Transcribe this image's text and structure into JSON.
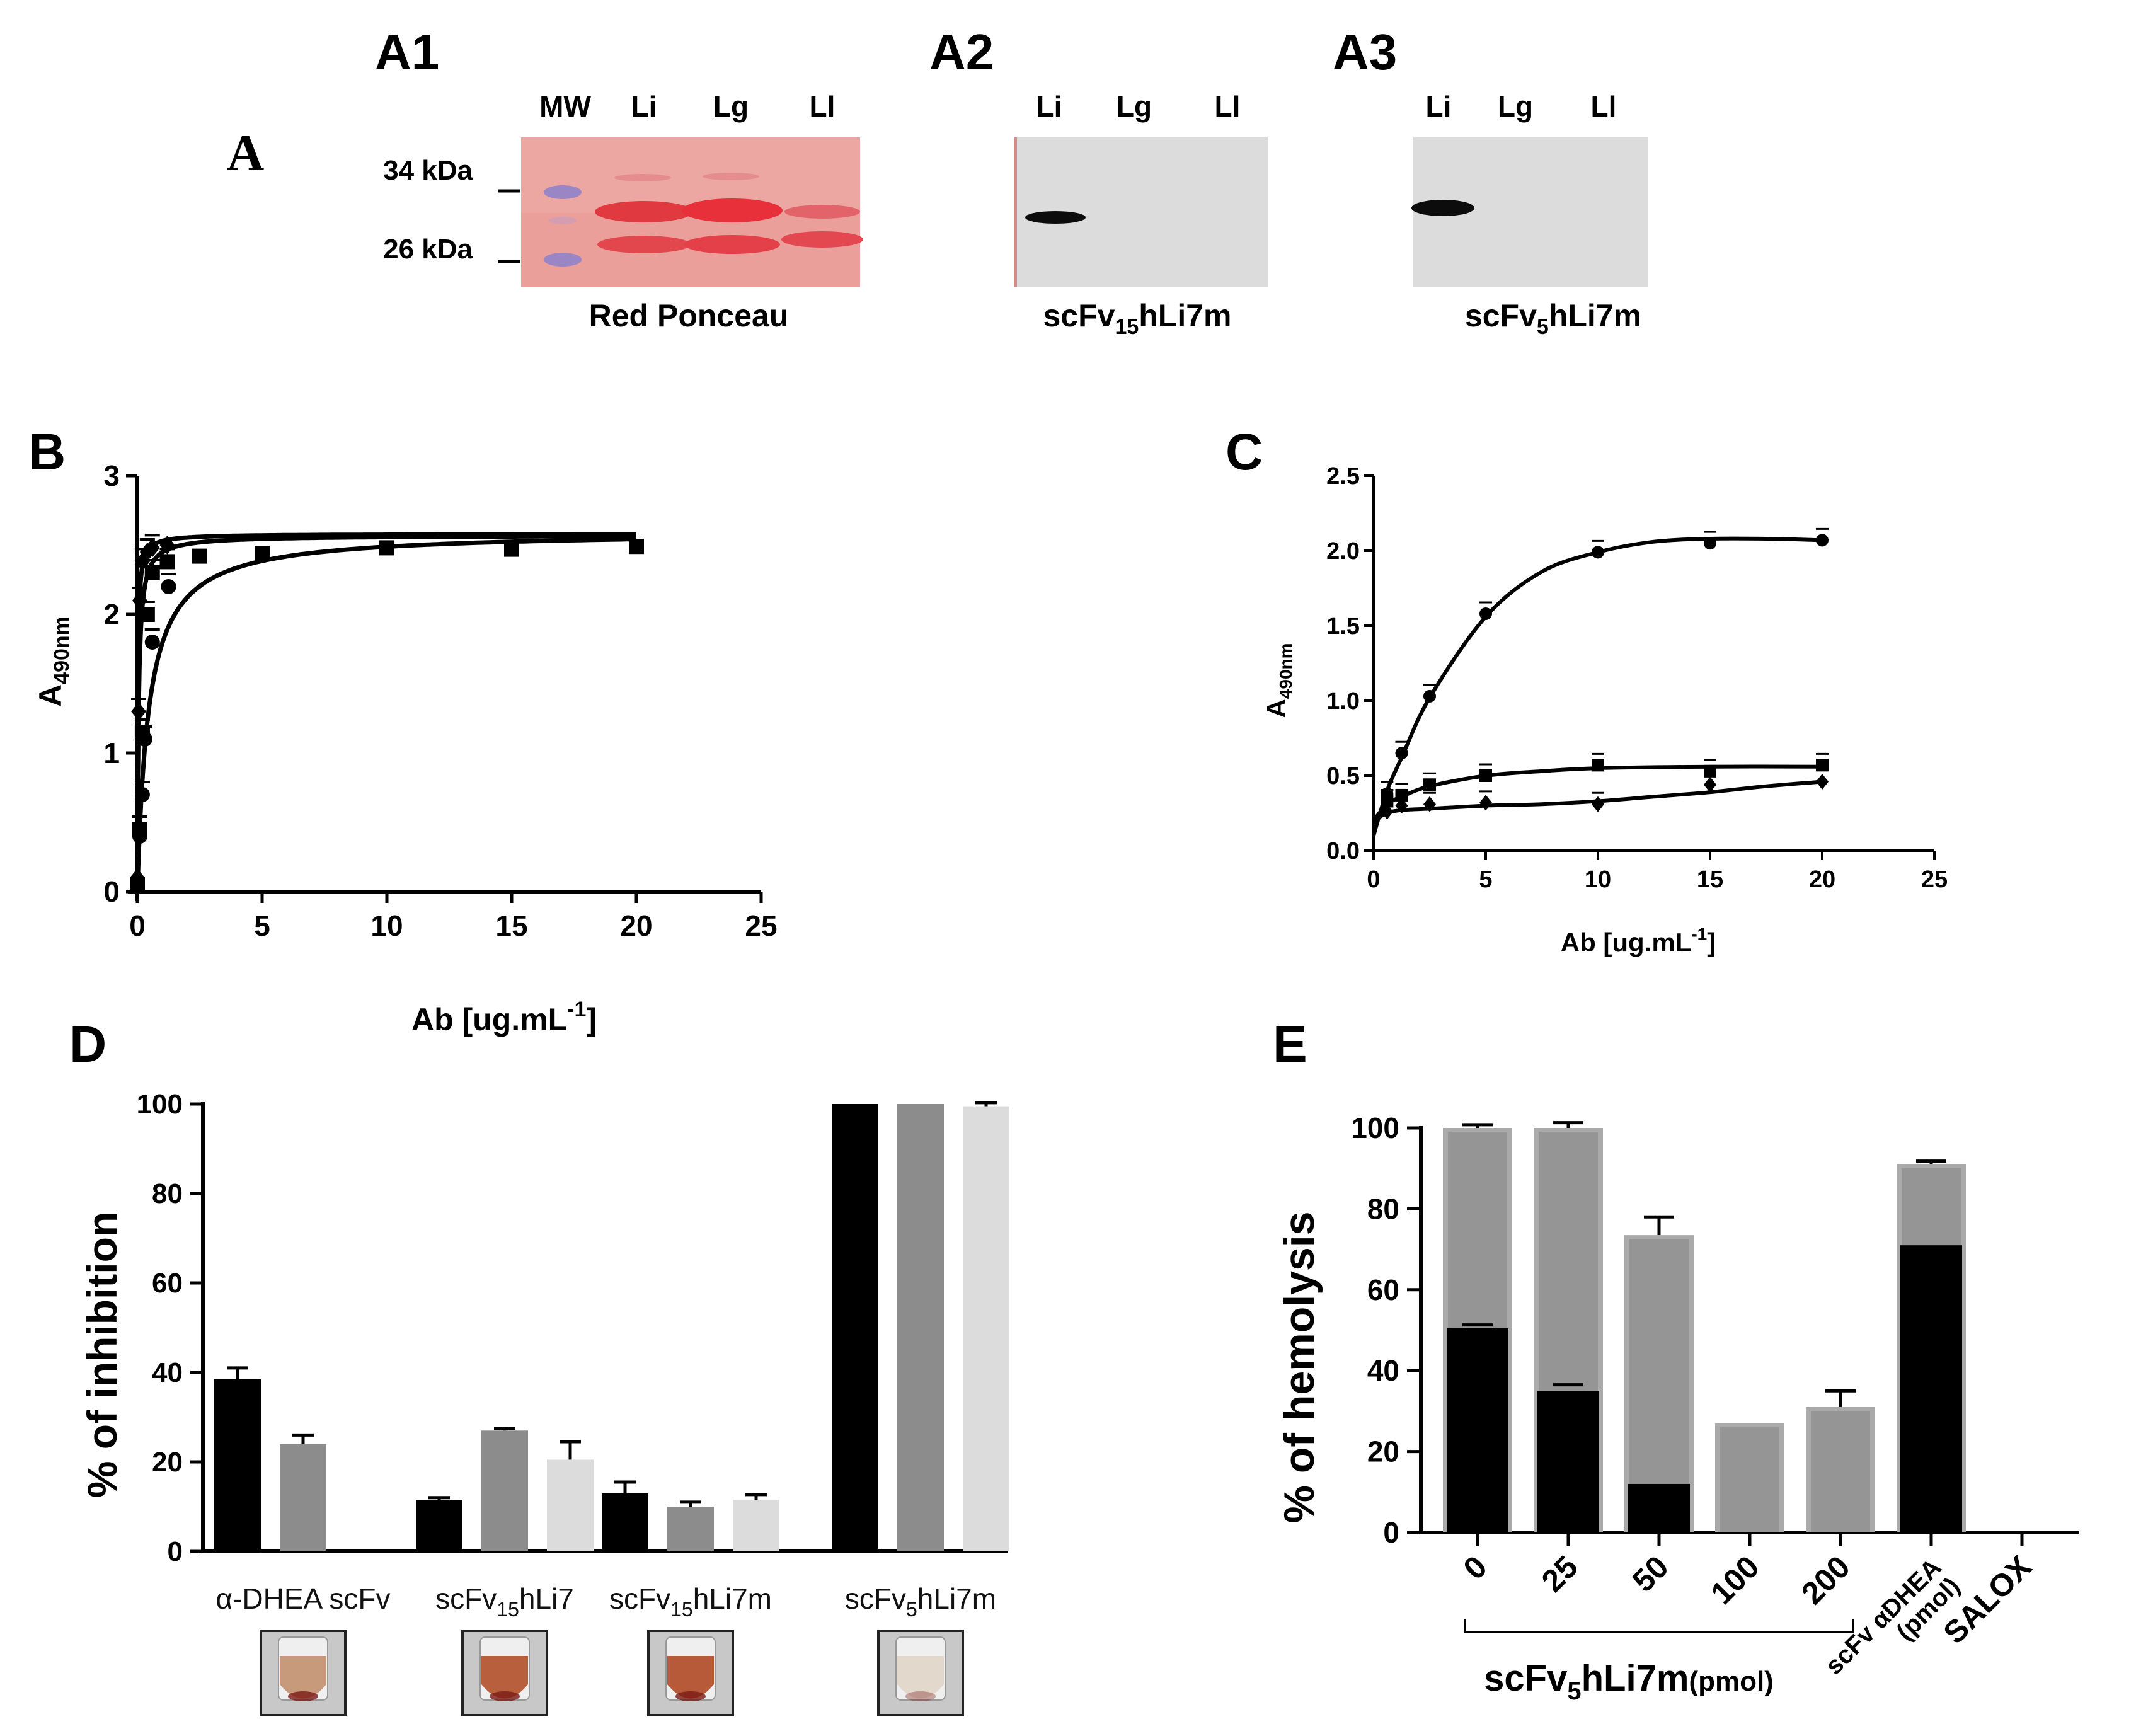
{
  "colors": {
    "black": "#000000",
    "dark_gray": "#8c8c8c",
    "light_gray": "#dcdcdc",
    "ponceau_bg": "#ea9f9a",
    "ponceau_band": "#e03a40",
    "mw_band": "#9a86c4",
    "blot_bg": "#dcdcdc",
    "blot_band": "#0c0c0c",
    "stack_light": "#aaaaaa",
    "stack_inner": "#959595"
  },
  "panel_a": {
    "label": "A",
    "sub": [
      {
        "label": "A1",
        "caption": "Red Ponceau",
        "lanes": [
          "MW",
          "Li",
          "Lg",
          "Ll"
        ],
        "markers": [
          "34 kDa",
          "26 kDa"
        ]
      },
      {
        "label": "A2",
        "caption": {
          "prefix": "scFv",
          "sub": "15",
          "suffix": "hLi7m"
        },
        "lanes": [
          "Li",
          "Lg",
          "Ll"
        ]
      },
      {
        "label": "A3",
        "caption": {
          "prefix": "scFv",
          "sub": "5",
          "suffix": "hLi7m"
        },
        "lanes": [
          "Li",
          "Lg",
          "Ll"
        ]
      }
    ]
  },
  "chart_data": [
    {
      "panel": "B",
      "type": "line",
      "xlabel": {
        "main": "Ab [ug.mL",
        "sup": "-1",
        "end": "]"
      },
      "ylabel": {
        "main": "A",
        "sub": "490nm"
      },
      "xlim": [
        0,
        25
      ],
      "ylim": [
        0,
        3
      ],
      "xticks": [
        0,
        5,
        10,
        15,
        20,
        25
      ],
      "yticks": [
        0,
        1,
        2,
        3
      ],
      "series": [
        {
          "name": "squares",
          "marker": "square",
          "x": [
            0,
            0.1,
            0.2,
            0.4,
            0.6,
            1.2,
            2.5,
            5,
            10,
            15,
            20
          ],
          "y": [
            0.05,
            0.45,
            1.15,
            2.0,
            2.3,
            2.38,
            2.42,
            2.44,
            2.48,
            2.47,
            2.49
          ],
          "curve": {
            "top": 2.57,
            "k": 0.05
          }
        },
        {
          "name": "diamonds",
          "marker": "diamond",
          "x": [
            0,
            0.05,
            0.1,
            0.2,
            0.4,
            0.6,
            1.2
          ],
          "y": [
            0.1,
            1.3,
            2.1,
            2.38,
            2.45,
            2.48,
            2.5
          ],
          "curve": {
            "top": 2.58,
            "k": 0.02
          }
        },
        {
          "name": "circles",
          "marker": "circle",
          "x": [
            0,
            0.1,
            0.2,
            0.3,
            0.6,
            1.25
          ],
          "y": [
            0.05,
            0.4,
            0.7,
            1.1,
            1.8,
            2.2
          ],
          "curve": {
            "top": 2.6,
            "k": 0.45
          }
        }
      ]
    },
    {
      "panel": "C",
      "type": "line",
      "xlabel": {
        "main": "Ab [ug.mL",
        "sup": "-1",
        "end": "]"
      },
      "ylabel": {
        "main": "A",
        "sub": "490nm"
      },
      "xlim": [
        0,
        25
      ],
      "ylim": [
        0,
        2.5
      ],
      "xticks": [
        0,
        5,
        10,
        15,
        20,
        25
      ],
      "yticks": [
        0.0,
        0.5,
        1.0,
        1.5,
        2.0,
        2.5
      ],
      "series": [
        {
          "name": "circles",
          "marker": "circle",
          "x": [
            0.6,
            1.25,
            2.5,
            5,
            10,
            15,
            20
          ],
          "y": [
            0.38,
            0.65,
            1.03,
            1.58,
            1.99,
            2.05,
            2.07
          ],
          "curve_x": [
            0,
            0.6,
            1.25,
            2.5,
            5,
            7.5,
            10,
            12.5,
            15,
            17.5,
            20
          ],
          "curve_y": [
            0.1,
            0.4,
            0.62,
            1.02,
            1.56,
            1.86,
            1.99,
            2.06,
            2.08,
            2.08,
            2.07
          ]
        },
        {
          "name": "squares",
          "marker": "square",
          "x": [
            0.6,
            1.25,
            2.5,
            5,
            10,
            15,
            20
          ],
          "y": [
            0.33,
            0.37,
            0.44,
            0.5,
            0.57,
            0.53,
            0.57
          ],
          "curve_x": [
            0,
            0.6,
            1.25,
            2.5,
            5,
            7.5,
            10,
            15,
            20
          ],
          "curve_y": [
            0.2,
            0.31,
            0.36,
            0.43,
            0.5,
            0.53,
            0.55,
            0.56,
            0.56
          ]
        },
        {
          "name": "diamonds",
          "marker": "diamond",
          "x": [
            0.6,
            1.25,
            2.5,
            5,
            10,
            15,
            20
          ],
          "y": [
            0.26,
            0.3,
            0.31,
            0.32,
            0.31,
            0.44,
            0.46
          ],
          "curve_x": [
            0,
            0.6,
            1.25,
            2.5,
            5,
            7.5,
            10,
            12.5,
            15,
            17.5,
            20
          ],
          "curve_y": [
            0.2,
            0.25,
            0.27,
            0.28,
            0.3,
            0.31,
            0.33,
            0.36,
            0.39,
            0.43,
            0.46
          ]
        }
      ]
    },
    {
      "panel": "D",
      "type": "bar",
      "ylabel": "% of inhibition",
      "ylim": [
        0,
        100
      ],
      "yticks": [
        0,
        20,
        40,
        60,
        80,
        100
      ],
      "groups": [
        {
          "label": {
            "prefix": "α-DHEA scFv",
            "sub": "",
            "suffix": ""
          },
          "values": [
            38.5,
            24
          ],
          "errors": [
            2.5,
            2
          ]
        },
        {
          "label": {
            "prefix": "scFv",
            "sub": "15",
            "suffix": "hLi7"
          },
          "values": [
            11.5,
            27,
            20.5
          ],
          "errors": [
            0.5,
            0.5,
            4
          ]
        },
        {
          "label": {
            "prefix": "scFv",
            "sub": "15",
            "suffix": "hLi7m"
          },
          "values": [
            13,
            10,
            11.5
          ],
          "errors": [
            2.5,
            1,
            1.2
          ]
        },
        {
          "label": {
            "prefix": "scFv",
            "sub": "5",
            "suffix": "hLi7m"
          },
          "values": [
            100,
            100,
            99.5
          ],
          "errors": [
            0,
            0,
            0.8
          ]
        }
      ],
      "tube_colors": [
        "#c89a7c",
        "#b8603e",
        "#b75a3a",
        "#e2d8cc"
      ]
    },
    {
      "panel": "E",
      "type": "bar",
      "ylabel": "% of hemolysis",
      "ylim": [
        0,
        100
      ],
      "yticks": [
        0,
        20,
        40,
        60,
        80,
        100
      ],
      "categories": [
        "0",
        "25",
        "50",
        "100",
        "200",
        "scFv αDHEA (pmol)",
        "SALOX"
      ],
      "category_lines": [
        [
          "0"
        ],
        [
          "25"
        ],
        [
          "50"
        ],
        [
          "100"
        ],
        [
          "200"
        ],
        [
          "scFv αDHEA",
          "(pmol)"
        ],
        [
          "SALOX"
        ]
      ],
      "gray_totals": [
        100,
        100,
        73.5,
        27,
        31
      ],
      "gray_errors": [
        0.8,
        1.3,
        4.5,
        0,
        4
      ],
      "black_values": [
        50.5,
        35,
        12,
        0,
        0
      ],
      "black_errors": [
        0.8,
        1.5,
        0,
        0,
        0
      ],
      "extra": [
        {
          "category": "scFv αDHEA (pmol)",
          "gray_total": 91,
          "gray_error": 0.8,
          "black": 71
        },
        {
          "category": "SALOX",
          "gray_total": 0,
          "black": 0
        }
      ],
      "bracket_label": {
        "prefix": "scFv",
        "sub": "5",
        "suffix": "hLi7m",
        "unit": "(pmol)"
      }
    }
  ]
}
